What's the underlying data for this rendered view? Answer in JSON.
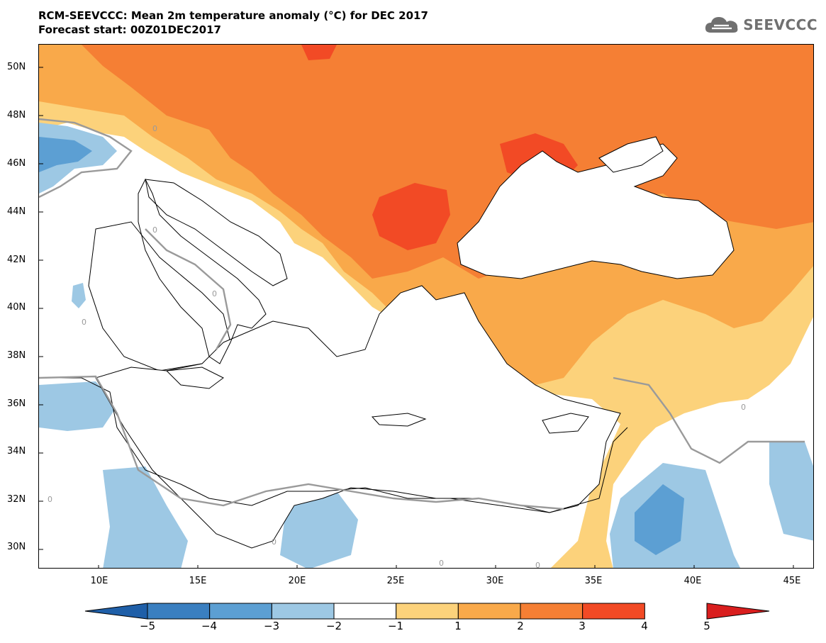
{
  "title": {
    "line1": "RCM-SEEVCCC: Mean 2m temperature anomaly (°C) for DEC 2017",
    "line2": "Forecast start: 00Z01DEC2017"
  },
  "logo": {
    "text": "SEEVCCC",
    "icon": "cloud-icon"
  },
  "axes": {
    "lat_labels": [
      "50N",
      "48N",
      "46N",
      "44N",
      "42N",
      "40N",
      "38N",
      "36N",
      "34N",
      "32N",
      "30N"
    ],
    "lon_labels": [
      "10E",
      "15E",
      "20E",
      "25E",
      "30E",
      "35E",
      "40E",
      "45E"
    ]
  },
  "colorbar": {
    "labels": [
      "−5",
      "−4",
      "−3",
      "−2",
      "−1",
      "1",
      "2",
      "3",
      "4",
      "5"
    ],
    "colors": [
      "#1f5fa8",
      "#3a7fc0",
      "#5c9fd3",
      "#9dc8e4",
      "#ffffff",
      "#fcd27b",
      "#f9a94a",
      "#f57f34",
      "#f24a25",
      "#d91e1e"
    ]
  },
  "contour_labels": [
    "0",
    "0",
    "0",
    "0",
    "0",
    "0",
    "0",
    "0",
    "0"
  ],
  "colors": {
    "land_line": "#000000",
    "contour": "#9a9a9a",
    "logo": "#707070"
  }
}
